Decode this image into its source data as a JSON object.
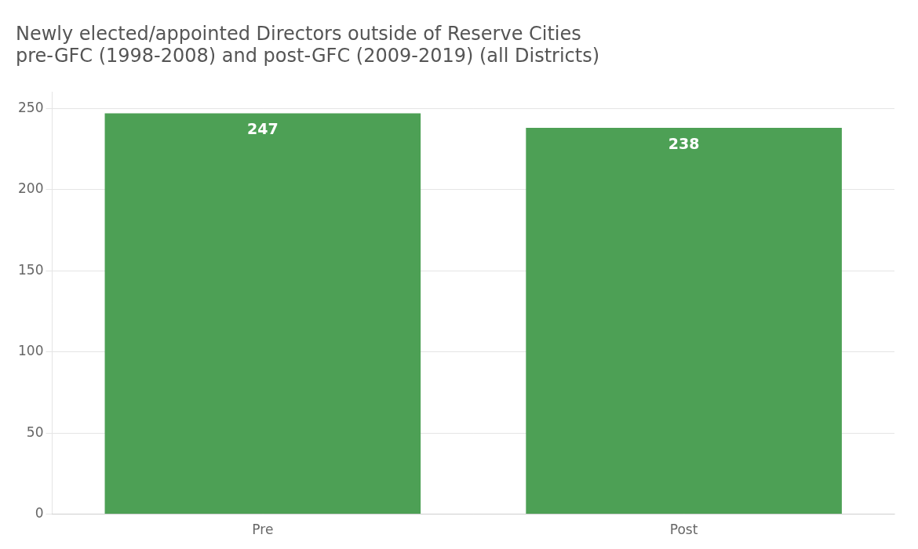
{
  "chart_data": {
    "type": "bar",
    "title": "Newly elected/appointed Directors outside of Reserve Cities\npre-GFC (1998-2008) and post-GFC (2009-2019) (all Districts)",
    "categories": [
      "Pre",
      "Post"
    ],
    "values": [
      247,
      238
    ],
    "color": "#4da055",
    "ylim": [
      0,
      260
    ],
    "yticks": [
      0,
      50,
      100,
      150,
      200,
      250
    ],
    "grid": true,
    "data_labels": true
  }
}
